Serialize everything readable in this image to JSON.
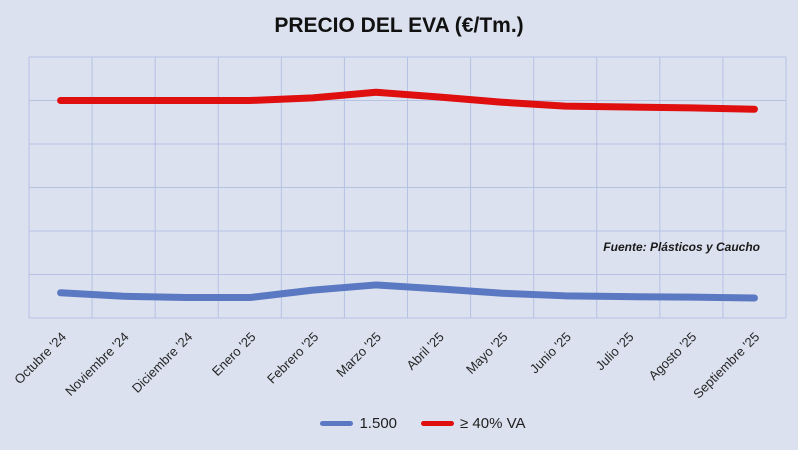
{
  "title": "PRECIO DEL EVA (€/Tm.)",
  "source_note": "Fuente: Plásticos y Caucho",
  "colors": {
    "background": "#dce1ef",
    "gridline": "#b6c2e4",
    "text": "#1f1f1f"
  },
  "legend": {
    "position": "bottom",
    "items": [
      {
        "label": "1.500",
        "series": 0
      },
      {
        "label": "≥ 40% VA",
        "series": 1
      }
    ]
  },
  "chart_data": {
    "type": "line",
    "title": "PRECIO DEL EVA (€/Tm.)",
    "categories": [
      "Octubre '24",
      "Noviembre '24",
      "Diciembre '24",
      "Enero '25",
      "Febrero '25",
      "Marzo '25",
      "Abril '25",
      "Mayo '25",
      "Junio '25",
      "Julio '25",
      "Agosto '25",
      "Septiembre '25"
    ],
    "series": [
      {
        "name": "1.500",
        "color": "#5b78c2",
        "values": [
          0.58,
          0.5,
          0.47,
          0.47,
          0.64,
          0.76,
          0.67,
          0.57,
          0.51,
          0.49,
          0.48,
          0.46
        ]
      },
      {
        "name": "≥ 40% VA",
        "color": "#df0f0f",
        "values": [
          5.0,
          5.0,
          5.0,
          5.0,
          5.06,
          5.19,
          5.08,
          4.96,
          4.87,
          4.85,
          4.83,
          4.8
        ]
      }
    ],
    "xlabel": "",
    "ylabel": "",
    "y_axis_note": "no numeric tick labels shown; values estimated in gridline units above bottom axis",
    "ylim": [
      0,
      6
    ],
    "grid": true,
    "h_gridlines": 7,
    "v_gridlines": 13,
    "legend_position": "bottom",
    "annotation": "Fuente: Plásticos y Caucho"
  }
}
